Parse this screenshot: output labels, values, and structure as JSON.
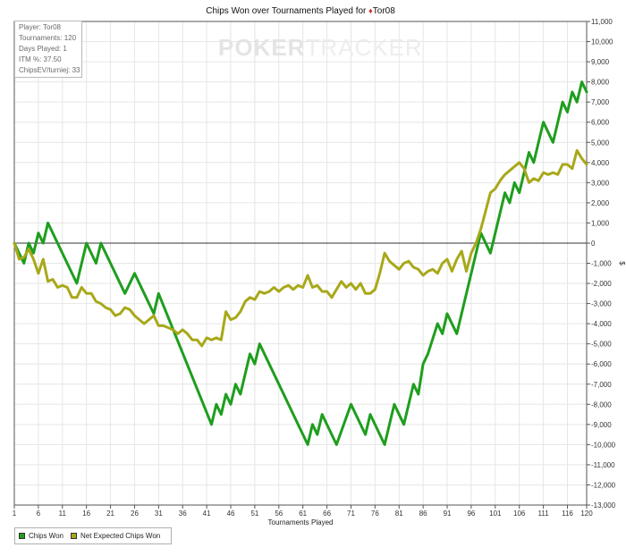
{
  "chart_data": {
    "type": "line",
    "title": "Chips Won over Tournaments Played for",
    "player_name": "Tor08",
    "xlabel": "Tournaments Played",
    "ylabel": "$",
    "xlim": [
      1,
      120
    ],
    "ylim": [
      -13000,
      11000
    ],
    "x_ticks": [
      1,
      6,
      11,
      16,
      21,
      26,
      31,
      36,
      41,
      46,
      51,
      56,
      61,
      66,
      71,
      76,
      81,
      86,
      91,
      96,
      101,
      106,
      111,
      116,
      120
    ],
    "y_ticks": [
      -13000,
      -12000,
      -11000,
      -10000,
      -9000,
      -8000,
      -7000,
      -6000,
      -5000,
      -4000,
      -3000,
      -2000,
      -1000,
      0,
      1000,
      2000,
      3000,
      4000,
      5000,
      6000,
      7000,
      8000,
      9000,
      10000,
      11000
    ],
    "grid": true,
    "legend_position": "bottom-left",
    "series": [
      {
        "name": "Chips Won",
        "color": "#1e9e1e",
        "points": [
          [
            1,
            0
          ],
          [
            3,
            -1000
          ],
          [
            4,
            0
          ],
          [
            5,
            -500
          ],
          [
            6,
            500
          ],
          [
            7,
            0
          ],
          [
            8,
            1000
          ],
          [
            14,
            -2000
          ],
          [
            16,
            0
          ],
          [
            18,
            -1000
          ],
          [
            19,
            0
          ],
          [
            24,
            -2500
          ],
          [
            26,
            -1500
          ],
          [
            30,
            -3500
          ],
          [
            31,
            -2500
          ],
          [
            42,
            -9000
          ],
          [
            43,
            -8000
          ],
          [
            44,
            -8500
          ],
          [
            45,
            -7500
          ],
          [
            46,
            -8000
          ],
          [
            47,
            -7000
          ],
          [
            48,
            -7500
          ],
          [
            50,
            -5500
          ],
          [
            51,
            -6000
          ],
          [
            52,
            -5000
          ],
          [
            62,
            -10000
          ],
          [
            63,
            -9000
          ],
          [
            64,
            -9500
          ],
          [
            65,
            -8500
          ],
          [
            68,
            -10000
          ],
          [
            71,
            -8000
          ],
          [
            74,
            -9500
          ],
          [
            75,
            -8500
          ],
          [
            78,
            -10000
          ],
          [
            80,
            -8000
          ],
          [
            82,
            -9000
          ],
          [
            84,
            -7000
          ],
          [
            85,
            -7500
          ],
          [
            86,
            -6000
          ],
          [
            87,
            -5500
          ],
          [
            89,
            -4000
          ],
          [
            90,
            -4500
          ],
          [
            91,
            -3500
          ],
          [
            93,
            -4500
          ],
          [
            98,
            500
          ],
          [
            100,
            -500
          ],
          [
            103,
            2500
          ],
          [
            104,
            2000
          ],
          [
            105,
            3000
          ],
          [
            106,
            2500
          ],
          [
            108,
            4500
          ],
          [
            109,
            4000
          ],
          [
            111,
            6000
          ],
          [
            113,
            5000
          ],
          [
            115,
            7000
          ],
          [
            116,
            6500
          ],
          [
            117,
            7500
          ],
          [
            118,
            7000
          ],
          [
            119,
            8000
          ],
          [
            120,
            7500
          ]
        ]
      },
      {
        "name": "Net Expected Chips Won",
        "color": "#a8a81a",
        "points": [
          [
            1,
            0
          ],
          [
            2,
            -800
          ],
          [
            3,
            -700
          ],
          [
            4,
            -300
          ],
          [
            5,
            -800
          ],
          [
            6,
            -1500
          ],
          [
            7,
            -800
          ],
          [
            8,
            -1900
          ],
          [
            9,
            -1800
          ],
          [
            10,
            -2200
          ],
          [
            11,
            -2100
          ],
          [
            12,
            -2200
          ],
          [
            13,
            -2700
          ],
          [
            14,
            -2700
          ],
          [
            15,
            -2200
          ],
          [
            16,
            -2500
          ],
          [
            17,
            -2500
          ],
          [
            18,
            -2900
          ],
          [
            19,
            -3000
          ],
          [
            20,
            -3200
          ],
          [
            21,
            -3300
          ],
          [
            22,
            -3600
          ],
          [
            23,
            -3500
          ],
          [
            24,
            -3200
          ],
          [
            25,
            -3300
          ],
          [
            26,
            -3600
          ],
          [
            27,
            -3800
          ],
          [
            28,
            -4000
          ],
          [
            29,
            -3800
          ],
          [
            30,
            -3600
          ],
          [
            31,
            -4100
          ],
          [
            32,
            -4100
          ],
          [
            33,
            -4200
          ],
          [
            34,
            -4300
          ],
          [
            35,
            -4500
          ],
          [
            36,
            -4300
          ],
          [
            37,
            -4500
          ],
          [
            38,
            -4800
          ],
          [
            39,
            -4800
          ],
          [
            40,
            -5100
          ],
          [
            41,
            -4700
          ],
          [
            42,
            -4800
          ],
          [
            43,
            -4700
          ],
          [
            44,
            -4800
          ],
          [
            45,
            -3400
          ],
          [
            46,
            -3800
          ],
          [
            47,
            -3700
          ],
          [
            48,
            -3400
          ],
          [
            49,
            -2900
          ],
          [
            50,
            -2700
          ],
          [
            51,
            -2800
          ],
          [
            52,
            -2400
          ],
          [
            53,
            -2500
          ],
          [
            54,
            -2400
          ],
          [
            55,
            -2200
          ],
          [
            56,
            -2400
          ],
          [
            57,
            -2200
          ],
          [
            58,
            -2100
          ],
          [
            59,
            -2300
          ],
          [
            60,
            -2100
          ],
          [
            61,
            -2200
          ],
          [
            62,
            -1600
          ],
          [
            63,
            -2200
          ],
          [
            64,
            -2100
          ],
          [
            65,
            -2400
          ],
          [
            66,
            -2400
          ],
          [
            67,
            -2700
          ],
          [
            68,
            -2300
          ],
          [
            69,
            -1900
          ],
          [
            70,
            -2200
          ],
          [
            71,
            -2000
          ],
          [
            72,
            -2300
          ],
          [
            73,
            -2000
          ],
          [
            74,
            -2500
          ],
          [
            75,
            -2500
          ],
          [
            76,
            -2300
          ],
          [
            77,
            -1500
          ],
          [
            78,
            -500
          ],
          [
            79,
            -900
          ],
          [
            80,
            -1100
          ],
          [
            81,
            -1300
          ],
          [
            82,
            -1000
          ],
          [
            83,
            -900
          ],
          [
            84,
            -1200
          ],
          [
            85,
            -1300
          ],
          [
            86,
            -1600
          ],
          [
            87,
            -1400
          ],
          [
            88,
            -1300
          ],
          [
            89,
            -1500
          ],
          [
            90,
            -1000
          ],
          [
            91,
            -800
          ],
          [
            92,
            -1400
          ],
          [
            93,
            -800
          ],
          [
            94,
            -400
          ],
          [
            95,
            -1400
          ],
          [
            96,
            -500
          ],
          [
            97,
            0
          ],
          [
            98,
            700
          ],
          [
            99,
            1600
          ],
          [
            100,
            2500
          ],
          [
            101,
            2700
          ],
          [
            102,
            3100
          ],
          [
            103,
            3400
          ],
          [
            104,
            3600
          ],
          [
            105,
            3800
          ],
          [
            106,
            4000
          ],
          [
            107,
            3700
          ],
          [
            108,
            3000
          ],
          [
            109,
            3200
          ],
          [
            110,
            3100
          ],
          [
            111,
            3500
          ],
          [
            112,
            3400
          ],
          [
            113,
            3500
          ],
          [
            114,
            3400
          ],
          [
            115,
            3900
          ],
          [
            116,
            3900
          ],
          [
            117,
            3700
          ],
          [
            118,
            4600
          ],
          [
            119,
            4200
          ],
          [
            120,
            3900
          ]
        ]
      }
    ]
  },
  "info_box": {
    "player": "Player: Tor08",
    "tournaments": "Tournaments: 120",
    "days_played": "Days Played: 1",
    "itm": "ITM %: 37.50",
    "chips_ev": "ChipsEV/turniej: 33"
  },
  "watermark": {
    "part1": "POKER",
    "part2": "TRACKER"
  },
  "legend": {
    "items": [
      {
        "label": "Chips Won",
        "color": "#1e9e1e"
      },
      {
        "label": "Net Expected Chips Won",
        "color": "#a8a81a"
      }
    ]
  }
}
